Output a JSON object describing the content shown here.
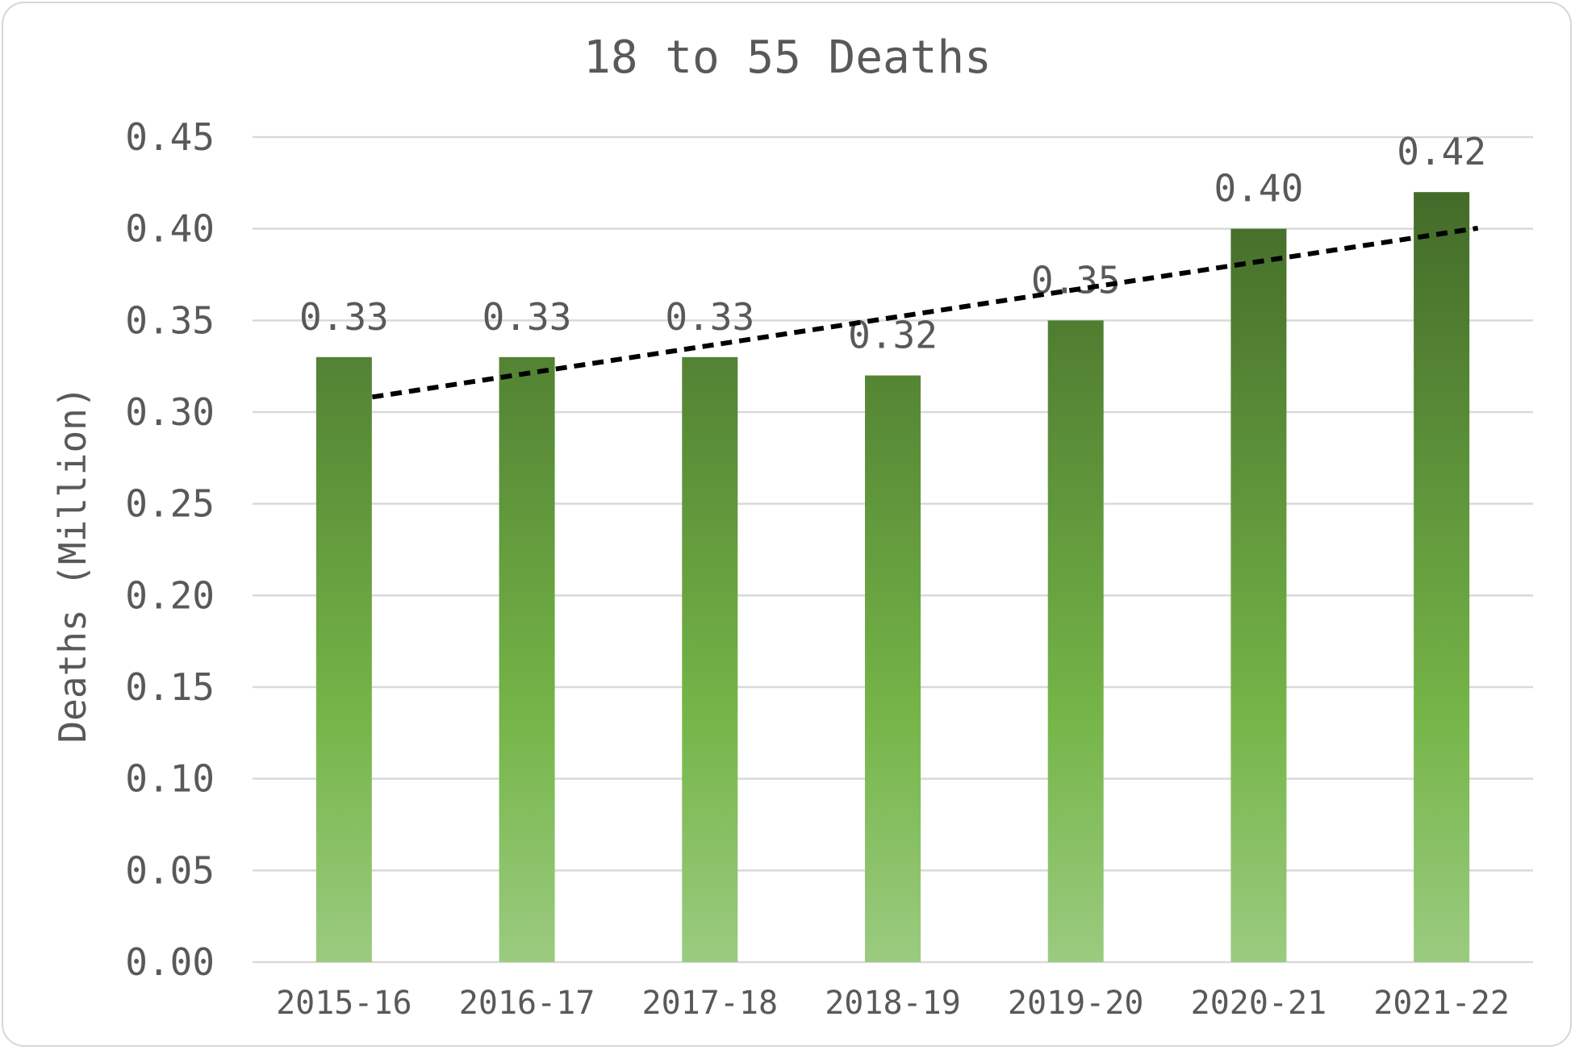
{
  "chart_data": {
    "type": "bar",
    "title": "18 to 55 Deaths",
    "xlabel": "",
    "ylabel": "Deaths (Million)",
    "categories": [
      "2015-16",
      "2016-17",
      "2017-18",
      "2018-19",
      "2019-20",
      "2020-21",
      "2021-22"
    ],
    "values": [
      0.33,
      0.33,
      0.33,
      0.32,
      0.35,
      0.4,
      0.42
    ],
    "data_labels": [
      "0.33",
      "0.33",
      "0.33",
      "0.32",
      "0.35",
      "0.40",
      "0.42"
    ],
    "ylim": [
      0,
      0.45
    ],
    "yticks": [
      "0.00",
      "0.05",
      "0.10",
      "0.15",
      "0.20",
      "0.25",
      "0.30",
      "0.35",
      "0.40",
      "0.45"
    ],
    "grid": true,
    "legend": "none",
    "trendline": {
      "type": "linear",
      "style": "dashed",
      "color": "#000000"
    },
    "colors": {
      "bar_top": "#436b29",
      "bar_mid": "#75b548",
      "bar_bottom": "#9bcb80",
      "grid": "#d9d9d9"
    }
  }
}
